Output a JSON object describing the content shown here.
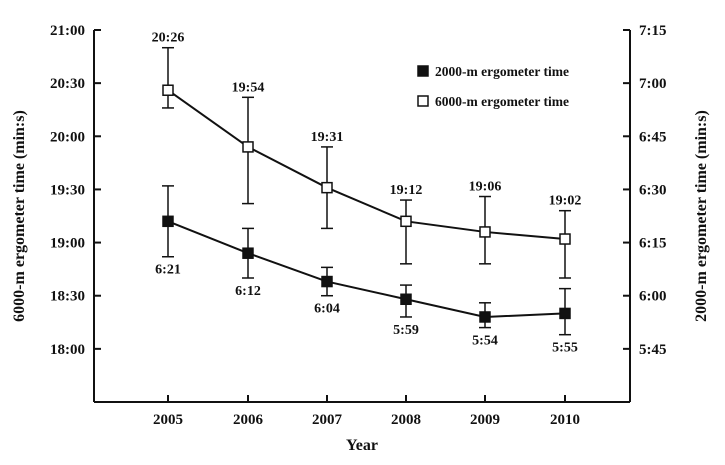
{
  "chart_data": {
    "type": "line",
    "title": "",
    "xlabel": "Year",
    "ylabel_left": "6000-m ergometer time (min:s)",
    "ylabel_right": "2000-m ergometer time (min:s)",
    "x": [
      2005,
      2006,
      2007,
      2008,
      2009,
      2010
    ],
    "x_tick_labels": [
      "2005",
      "2006",
      "2007",
      "2008",
      "2009",
      "2010"
    ],
    "left_axis": {
      "unit": "seconds",
      "range": [
        1050,
        1260
      ],
      "tick_values": [
        1080,
        1110,
        1140,
        1170,
        1200,
        1230,
        1260
      ],
      "tick_labels": [
        "18:00",
        "18:30",
        "19:00",
        "19:30",
        "20:00",
        "20:30",
        "21:00"
      ]
    },
    "right_axis": {
      "unit": "seconds",
      "range": [
        330,
        435
      ],
      "tick_values": [
        345,
        360,
        375,
        390,
        405,
        420,
        435
      ],
      "tick_labels": [
        "5:45",
        "6:00",
        "6:15",
        "6:30",
        "6:45",
        "7:00",
        "7:15"
      ]
    },
    "legend_position": "top-right",
    "grid": false,
    "series": [
      {
        "name": "2000-m ergometer time",
        "axis": "right",
        "marker": "filled-square",
        "color": "#111111",
        "values": [
          381,
          372,
          364,
          359,
          354,
          355
        ],
        "error_upper": [
          391,
          379,
          368,
          363,
          358,
          362
        ],
        "error_lower": [
          371,
          365,
          360,
          354,
          351,
          349
        ],
        "data_labels": [
          "6:21",
          "6:12",
          "6:04",
          "5:59",
          "5:54",
          "5:55"
        ]
      },
      {
        "name": "6000-m ergometer time",
        "axis": "left",
        "marker": "open-square",
        "color": "#111111",
        "values": [
          1226,
          1194,
          1171,
          1152,
          1146,
          1142
        ],
        "error_upper": [
          1250,
          1222,
          1194,
          1164,
          1166,
          1158
        ],
        "error_lower": [
          1216,
          1162,
          1148,
          1128,
          1128,
          1120
        ],
        "data_labels": [
          "20:26",
          "19:54",
          "19:31",
          "19:12",
          "19:06",
          "19:02"
        ]
      }
    ]
  }
}
